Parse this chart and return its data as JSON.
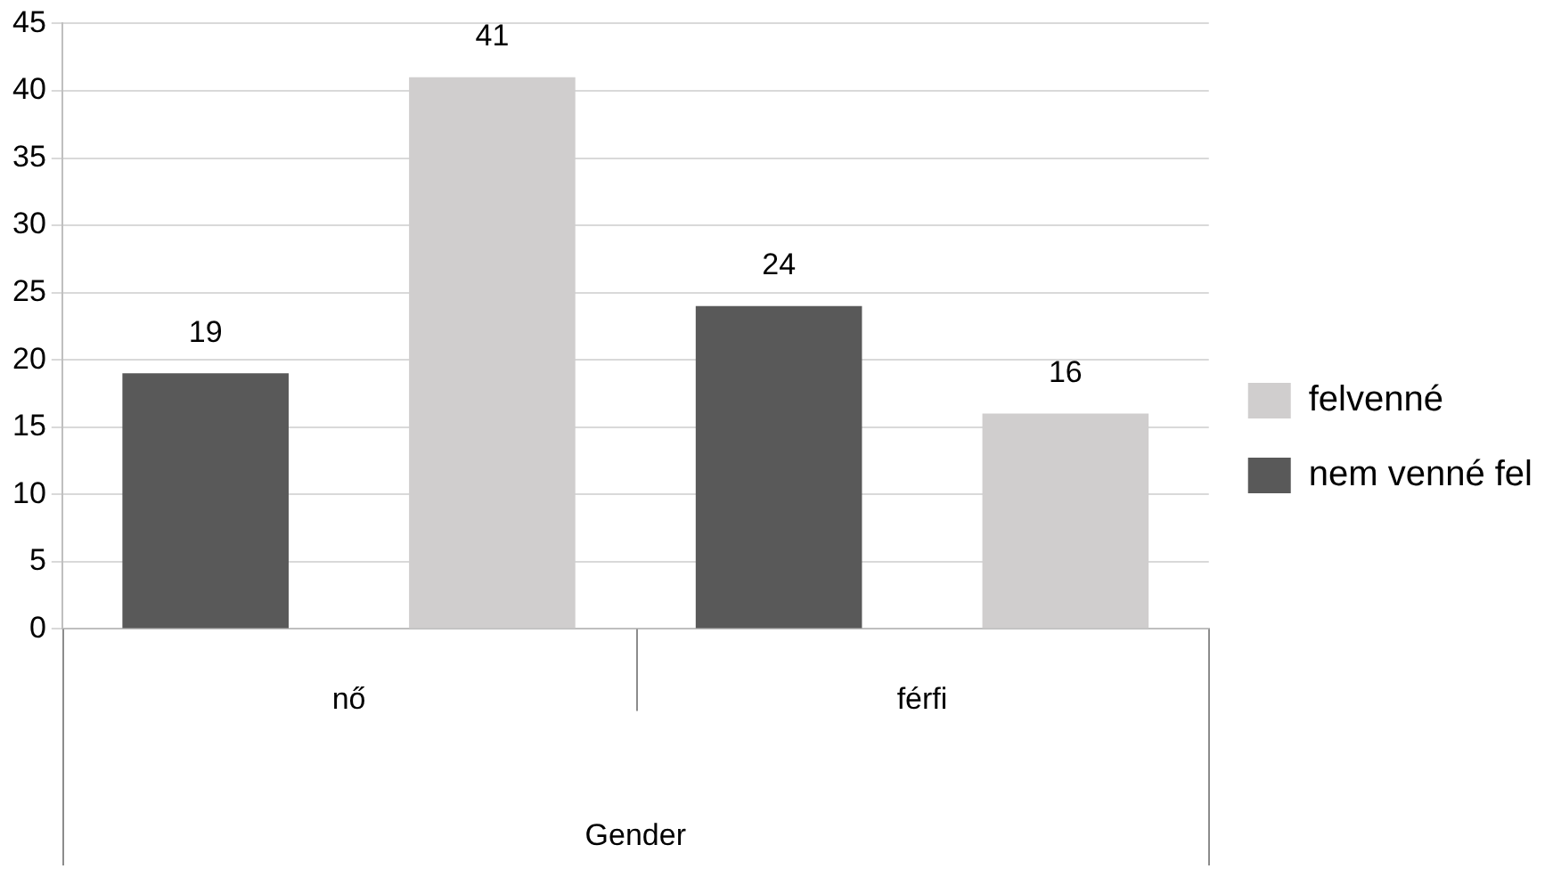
{
  "chart_data": {
    "type": "bar",
    "xlabel": "Gender",
    "categories": [
      "nő",
      "férfi"
    ],
    "series": [
      {
        "name": "nem venné fel",
        "color": "#595959",
        "values": [
          19,
          24
        ]
      },
      {
        "name": "felvenné",
        "color": "#d0cece",
        "values": [
          41,
          16
        ]
      }
    ],
    "ylim": [
      0,
      45
    ],
    "yticks": [
      0,
      5,
      10,
      15,
      20,
      25,
      30,
      35,
      40,
      45
    ],
    "grid": "y",
    "legend": "right",
    "data_labels": true
  }
}
